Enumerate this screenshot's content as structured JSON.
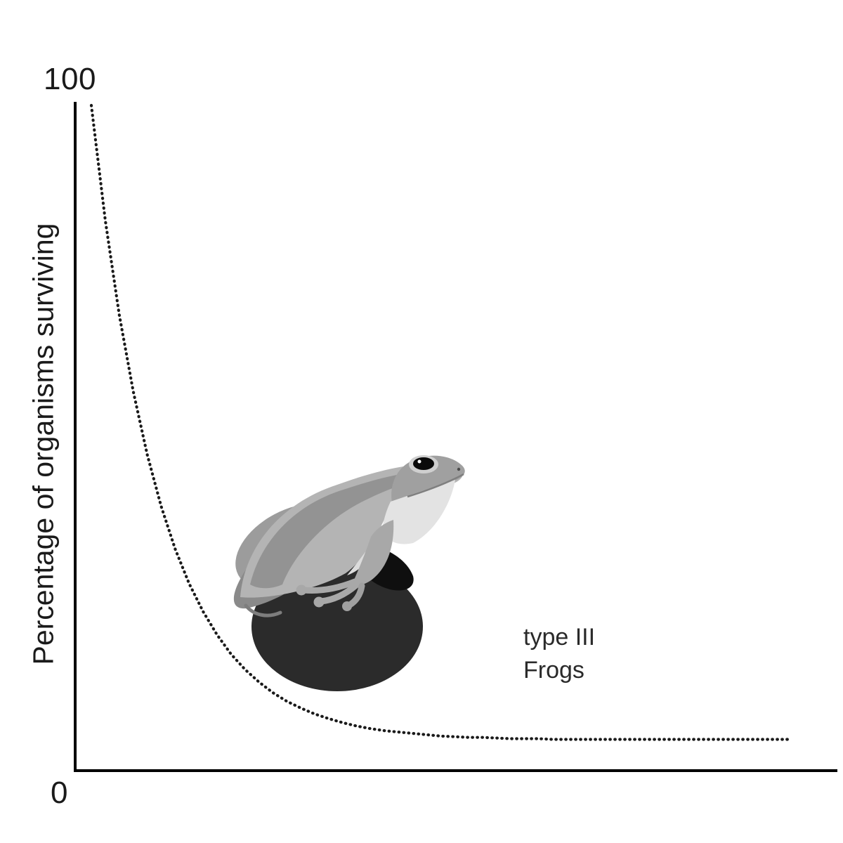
{
  "chart": {
    "axis_color": "#000000",
    "background_color": "#ffffff",
    "curve_color": "#1a1a1a",
    "egg_ball_color": "#2b2b2b",
    "frog_body_color": "#b4b4b4"
  },
  "chart_data": {
    "type": "line",
    "title": "",
    "subtitle": "",
    "xlabel": "",
    "ylabel": "Percentage of organisms surviving",
    "xlim": [
      0,
      100
    ],
    "ylim": [
      0,
      100
    ],
    "grid": false,
    "legend_position": "none",
    "x_tick_labels": [],
    "y_tick_labels": [
      {
        "value": 0,
        "label": "0"
      },
      {
        "value": 100,
        "label": "100"
      }
    ],
    "annotations": [
      {
        "text": "type III",
        "x": 62,
        "y": 21
      },
      {
        "text": "Frogs",
        "x": 62,
        "y": 16
      }
    ],
    "illustration": "frog sitting on egg mass",
    "series": [
      {
        "name": "type III survivorship (Frogs)",
        "line_style": "dotted",
        "color": "#1a1a1a",
        "x": [
          0,
          2,
          4,
          6,
          8,
          10,
          12,
          14,
          16,
          18,
          20,
          22,
          24,
          26,
          28,
          30,
          32,
          34,
          36,
          38,
          40,
          42,
          44,
          46,
          48,
          50,
          52,
          54,
          56,
          58,
          60,
          62,
          64,
          66,
          68,
          70,
          72,
          74,
          76,
          78,
          80,
          82,
          84,
          86,
          88,
          90,
          92,
          94,
          96,
          98,
          100
        ],
        "y": [
          100,
          82.7,
          68.5,
          57,
          47.5,
          39.7,
          33.3,
          28.1,
          23.9,
          20.4,
          17.5,
          15.2,
          13.3,
          11.7,
          10.4,
          9.4,
          8.5,
          7.8,
          7.2,
          6.7,
          6.3,
          6,
          5.8,
          5.6,
          5.4,
          5.2,
          5.1,
          5,
          5,
          4.9,
          4.8,
          4.8,
          4.8,
          4.7,
          4.7,
          4.7,
          4.7,
          4.7,
          4.7,
          4.7,
          4.7,
          4.7,
          4.7,
          4.7,
          4.7,
          4.7,
          4.7,
          4.7,
          4.7,
          4.7,
          4.7
        ]
      }
    ]
  }
}
